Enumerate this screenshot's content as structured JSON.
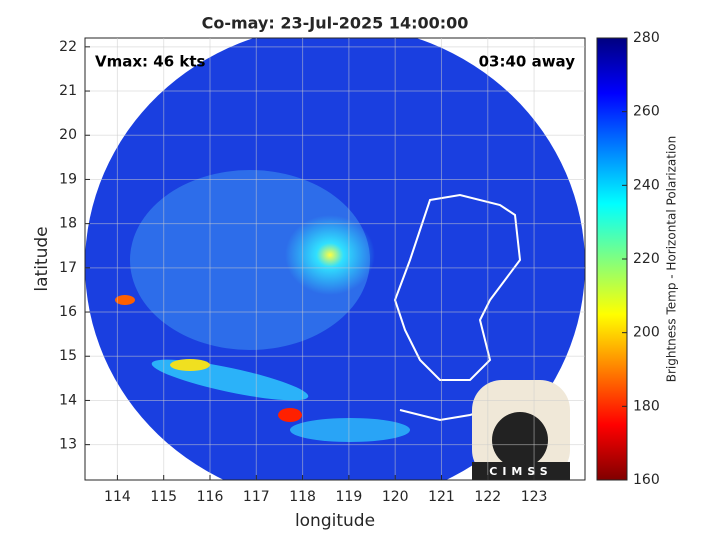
{
  "chart_data": {
    "type": "map",
    "title": "Co-may: 23-Jul-2025 14:00:00",
    "annotations": {
      "left": "Vmax: 46 kts",
      "right": "03:40 away"
    },
    "xlabel": "longitude",
    "ylabel": "latitude",
    "xlim": [
      113.3,
      124.1
    ],
    "xticks": [
      114,
      115,
      116,
      117,
      118,
      119,
      120,
      121,
      122,
      123
    ],
    "ylim": [
      12.2,
      22.2
    ],
    "yticks": [
      13,
      14,
      15,
      16,
      17,
      18,
      19,
      20,
      21,
      22
    ],
    "grid": true,
    "colorbar": {
      "label": "Brightness Temp - Horizontal Polarization",
      "lim": [
        160,
        280
      ],
      "ticks": [
        160,
        180,
        200,
        220,
        240,
        260,
        280
      ],
      "colormap": [
        "#800000",
        "#ff0000",
        "#ff8000",
        "#ffff00",
        "#80ff80",
        "#00ffff",
        "#0080ff",
        "#0000ff",
        "#000080"
      ]
    },
    "logo": "CIMSS"
  }
}
